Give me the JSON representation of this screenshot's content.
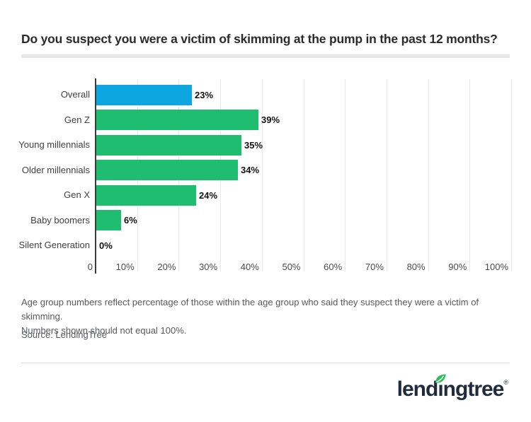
{
  "chart_data": {
    "type": "bar",
    "orientation": "horizontal",
    "title": "Do you suspect you were a victim of skimming at the pump in the past 12 months?",
    "categories": [
      "Overall",
      "Gen Z",
      "Young millennials",
      "Older millennials",
      "Gen X",
      "Baby boomers",
      "Silent Generation"
    ],
    "values": [
      23,
      39,
      35,
      34,
      24,
      6,
      0
    ],
    "value_labels": [
      "23%",
      "39%",
      "35%",
      "34%",
      "24%",
      "6%",
      "0%"
    ],
    "bar_colors": [
      "#0ea6e0",
      "#1fbd6f",
      "#1fbd6f",
      "#1fbd6f",
      "#1fbd6f",
      "#1fbd6f",
      "#1fbd6f"
    ],
    "xlabel": "",
    "ylabel": "",
    "xlim": [
      0,
      100
    ],
    "x_tick_values": [
      0,
      10,
      20,
      30,
      40,
      50,
      60,
      70,
      80,
      90,
      100
    ],
    "x_tick_labels": [
      "0",
      "10%",
      "20%",
      "30%",
      "40%",
      "50%",
      "60%",
      "70%",
      "80%",
      "90%",
      "100%"
    ],
    "grid": true,
    "legend": "none"
  },
  "footnote": {
    "lines": [
      "Age group numbers reflect percentage of those within the age group who said they suspect they were a victim of skimming.",
      "Numbers shown should not equal 100%."
    ]
  },
  "source": "Source: LendingTree",
  "logo": {
    "pre": "lend",
    "dotless_i": "ı",
    "post": "ngtree",
    "reg": "®",
    "brand_name": "lendingtree",
    "text_color": "#1f2c3d",
    "leaf_color": "#2ebd59"
  },
  "colors": {
    "highlight_bar": "#0ea6e0",
    "default_bar": "#1fbd6f",
    "axis_line": "#3a3a3a",
    "gridline": "#e8e8e8",
    "title_text": "#2b2b2b",
    "footnote_text": "#58595b",
    "divider": "#e7e7e7"
  }
}
